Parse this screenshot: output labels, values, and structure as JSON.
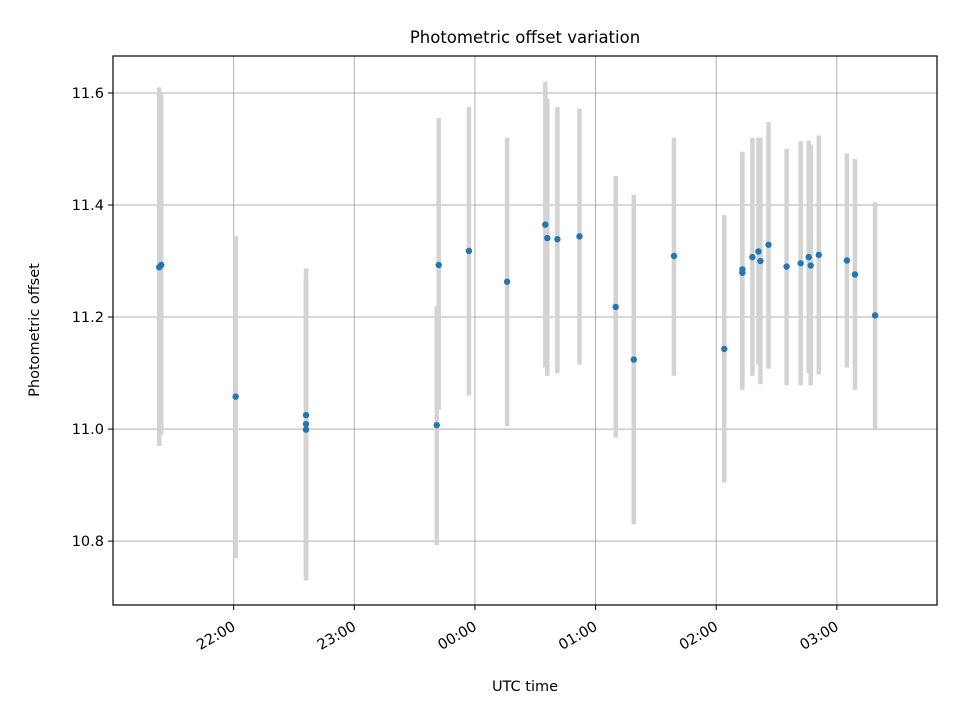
{
  "chart_data": {
    "type": "scatter",
    "title": "Photometric offset variation",
    "xlabel": "UTC time",
    "ylabel": "Photometric offset",
    "x_tick_labels": [
      "22:00",
      "23:00",
      "00:00",
      "01:00",
      "02:00",
      "03:00"
    ],
    "y_tick_labels": [
      "10.8",
      "11.0",
      "11.2",
      "11.4",
      "11.6"
    ],
    "x_ticks_hours": [
      22,
      23,
      24,
      25,
      26,
      27
    ],
    "y_ticks": [
      10.8,
      11.0,
      11.2,
      11.4,
      11.6
    ],
    "xlim_hours": [
      21.0,
      27.83
    ],
    "ylim": [
      10.686,
      11.666
    ],
    "grid": true,
    "point_color": "#1f77b4",
    "errorbar_color": "#d3d3d3",
    "points": [
      {
        "t": "21:23",
        "y": 11.289,
        "lo": 10.97,
        "hi": 11.61
      },
      {
        "t": "21:24",
        "y": 11.293,
        "lo": 10.99,
        "hi": 11.6
      },
      {
        "t": "22:01",
        "y": 11.058,
        "lo": 10.77,
        "hi": 11.345
      },
      {
        "t": "22:36",
        "y": 11.025,
        "lo": 10.76,
        "hi": 11.287
      },
      {
        "t": "22:36",
        "y": 11.009,
        "lo": 10.73,
        "hi": 11.275
      },
      {
        "t": "22:36",
        "y": 10.999,
        "lo": 10.735,
        "hi": 11.265
      },
      {
        "t": "23:41",
        "y": 11.007,
        "lo": 10.793,
        "hi": 11.22
      },
      {
        "t": "23:42",
        "y": 11.293,
        "lo": 11.035,
        "hi": 11.555
      },
      {
        "t": "23:57",
        "y": 11.318,
        "lo": 11.06,
        "hi": 11.575
      },
      {
        "t": "00:16",
        "y": 11.263,
        "lo": 11.005,
        "hi": 11.52
      },
      {
        "t": "00:35",
        "y": 11.365,
        "lo": 11.11,
        "hi": 11.62
      },
      {
        "t": "00:36",
        "y": 11.341,
        "lo": 11.095,
        "hi": 11.59
      },
      {
        "t": "00:41",
        "y": 11.339,
        "lo": 11.1,
        "hi": 11.575
      },
      {
        "t": "00:52",
        "y": 11.344,
        "lo": 11.115,
        "hi": 11.572
      },
      {
        "t": "01:10",
        "y": 11.218,
        "lo": 10.985,
        "hi": 11.452
      },
      {
        "t": "01:19",
        "y": 11.124,
        "lo": 10.83,
        "hi": 11.418
      },
      {
        "t": "01:39",
        "y": 11.309,
        "lo": 11.095,
        "hi": 11.52
      },
      {
        "t": "02:04",
        "y": 11.143,
        "lo": 10.905,
        "hi": 11.382
      },
      {
        "t": "02:13",
        "y": 11.285,
        "lo": 11.07,
        "hi": 11.495
      },
      {
        "t": "02:13",
        "y": 11.279,
        "lo": 11.075,
        "hi": 11.49
      },
      {
        "t": "02:18",
        "y": 11.307,
        "lo": 11.095,
        "hi": 11.52
      },
      {
        "t": "02:21",
        "y": 11.317,
        "lo": 11.115,
        "hi": 11.52
      },
      {
        "t": "02:22",
        "y": 11.3,
        "lo": 11.08,
        "hi": 11.52
      },
      {
        "t": "02:26",
        "y": 11.329,
        "lo": 11.108,
        "hi": 11.548
      },
      {
        "t": "02:35",
        "y": 11.29,
        "lo": 11.078,
        "hi": 11.5
      },
      {
        "t": "02:42",
        "y": 11.296,
        "lo": 11.078,
        "hi": 11.514
      },
      {
        "t": "02:46",
        "y": 11.307,
        "lo": 11.1,
        "hi": 11.515
      },
      {
        "t": "02:47",
        "y": 11.292,
        "lo": 11.078,
        "hi": 11.508
      },
      {
        "t": "02:51",
        "y": 11.311,
        "lo": 11.098,
        "hi": 11.524
      },
      {
        "t": "03:05",
        "y": 11.301,
        "lo": 11.11,
        "hi": 11.492
      },
      {
        "t": "03:09",
        "y": 11.276,
        "lo": 11.07,
        "hi": 11.482
      },
      {
        "t": "03:19",
        "y": 11.203,
        "lo": 11.0,
        "hi": 11.405
      }
    ]
  }
}
